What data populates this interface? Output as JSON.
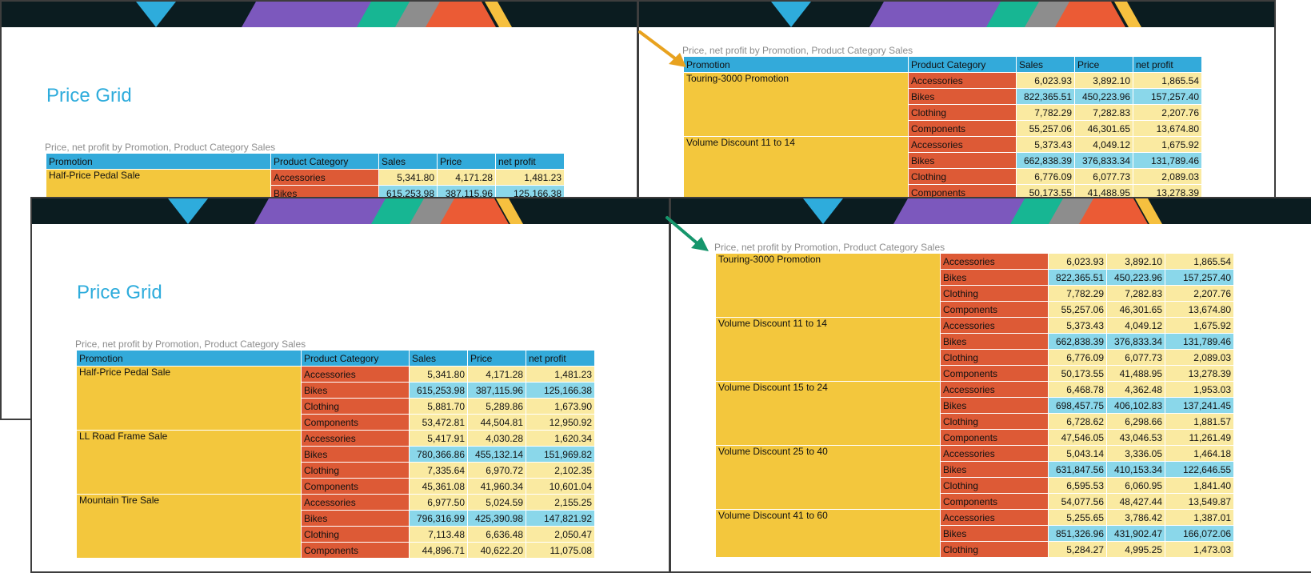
{
  "caption": "Price, net profit by Promotion, Product Category Sales",
  "report_title": "Price Grid",
  "headers": [
    "Promotion",
    "Product Category",
    "Sales",
    "Price",
    "net profit"
  ],
  "colors": {
    "banner": "#0b1c20",
    "header": "#33aada",
    "promotion": "#f3c73d",
    "category": "#dd5a36",
    "value": "#faeaa1",
    "value_highlight": "#8ad7ea",
    "title": "#2eacdc",
    "arrow_orange": "#e8a21f",
    "arrow_green": "#16966c"
  },
  "top_left_page": {
    "groups": [
      {
        "promotion": "Half-Price Pedal Sale",
        "rows": [
          {
            "category": "Accessories",
            "sales": "5,341.80",
            "price": "4,171.28",
            "profit": "1,481.23"
          },
          {
            "category": "Bikes",
            "sales": "615,253.98",
            "price": "387,115.96",
            "profit": "125,166.38"
          }
        ]
      }
    ]
  },
  "top_right_page": {
    "groups": [
      {
        "promotion": "Touring-3000 Promotion",
        "rows": [
          {
            "category": "Accessories",
            "sales": "6,023.93",
            "price": "3,892.10",
            "profit": "1,865.54"
          },
          {
            "category": "Bikes",
            "sales": "822,365.51",
            "price": "450,223.96",
            "profit": "157,257.40"
          },
          {
            "category": "Clothing",
            "sales": "7,782.29",
            "price": "7,282.83",
            "profit": "2,207.76"
          },
          {
            "category": "Components",
            "sales": "55,257.06",
            "price": "46,301.65",
            "profit": "13,674.80"
          }
        ]
      },
      {
        "promotion": "Volume Discount 11 to 14",
        "rows": [
          {
            "category": "Accessories",
            "sales": "5,373.43",
            "price": "4,049.12",
            "profit": "1,675.92"
          },
          {
            "category": "Bikes",
            "sales": "662,838.39",
            "price": "376,833.34",
            "profit": "131,789.46"
          },
          {
            "category": "Clothing",
            "sales": "6,776.09",
            "price": "6,077.73",
            "profit": "2,089.03"
          },
          {
            "category": "Components",
            "sales": "50,173.55",
            "price": "41,488.95",
            "profit": "13,278.39"
          }
        ]
      }
    ]
  },
  "bottom_left_page": {
    "groups": [
      {
        "promotion": "Half-Price Pedal Sale",
        "rows": [
          {
            "category": "Accessories",
            "sales": "5,341.80",
            "price": "4,171.28",
            "profit": "1,481.23"
          },
          {
            "category": "Bikes",
            "sales": "615,253.98",
            "price": "387,115.96",
            "profit": "125,166.38"
          },
          {
            "category": "Clothing",
            "sales": "5,881.70",
            "price": "5,289.86",
            "profit": "1,673.90"
          },
          {
            "category": "Components",
            "sales": "53,472.81",
            "price": "44,504.81",
            "profit": "12,950.92"
          }
        ]
      },
      {
        "promotion": "LL Road Frame Sale",
        "rows": [
          {
            "category": "Accessories",
            "sales": "5,417.91",
            "price": "4,030.28",
            "profit": "1,620.34"
          },
          {
            "category": "Bikes",
            "sales": "780,366.86",
            "price": "455,132.14",
            "profit": "151,969.82"
          },
          {
            "category": "Clothing",
            "sales": "7,335.64",
            "price": "6,970.72",
            "profit": "2,102.35"
          },
          {
            "category": "Components",
            "sales": "45,361.08",
            "price": "41,960.34",
            "profit": "10,601.04"
          }
        ]
      },
      {
        "promotion": "Mountain Tire Sale",
        "rows": [
          {
            "category": "Accessories",
            "sales": "6,977.50",
            "price": "5,024.59",
            "profit": "2,155.25"
          },
          {
            "category": "Bikes",
            "sales": "796,316.99",
            "price": "425,390.98",
            "profit": "147,821.92"
          },
          {
            "category": "Clothing",
            "sales": "7,113.48",
            "price": "6,636.48",
            "profit": "2,050.47"
          },
          {
            "category": "Components",
            "sales": "44,896.71",
            "price": "40,622.20",
            "profit": "11,075.08"
          }
        ]
      }
    ]
  },
  "bottom_right_page": {
    "groups": [
      {
        "promotion": "Touring-3000 Promotion",
        "rows": [
          {
            "category": "Accessories",
            "sales": "6,023.93",
            "price": "3,892.10",
            "profit": "1,865.54"
          },
          {
            "category": "Bikes",
            "sales": "822,365.51",
            "price": "450,223.96",
            "profit": "157,257.40"
          },
          {
            "category": "Clothing",
            "sales": "7,782.29",
            "price": "7,282.83",
            "profit": "2,207.76"
          },
          {
            "category": "Components",
            "sales": "55,257.06",
            "price": "46,301.65",
            "profit": "13,674.80"
          }
        ]
      },
      {
        "promotion": "Volume Discount 11 to 14",
        "rows": [
          {
            "category": "Accessories",
            "sales": "5,373.43",
            "price": "4,049.12",
            "profit": "1,675.92"
          },
          {
            "category": "Bikes",
            "sales": "662,838.39",
            "price": "376,833.34",
            "profit": "131,789.46"
          },
          {
            "category": "Clothing",
            "sales": "6,776.09",
            "price": "6,077.73",
            "profit": "2,089.03"
          },
          {
            "category": "Components",
            "sales": "50,173.55",
            "price": "41,488.95",
            "profit": "13,278.39"
          }
        ]
      },
      {
        "promotion": "Volume Discount 15 to 24",
        "rows": [
          {
            "category": "Accessories",
            "sales": "6,468.78",
            "price": "4,362.48",
            "profit": "1,953.03"
          },
          {
            "category": "Bikes",
            "sales": "698,457.75",
            "price": "406,102.83",
            "profit": "137,241.45"
          },
          {
            "category": "Clothing",
            "sales": "6,728.62",
            "price": "6,298.66",
            "profit": "1,881.57"
          },
          {
            "category": "Components",
            "sales": "47,546.05",
            "price": "43,046.53",
            "profit": "11,261.49"
          }
        ]
      },
      {
        "promotion": "Volume Discount 25 to 40",
        "rows": [
          {
            "category": "Accessories",
            "sales": "5,043.14",
            "price": "3,336.05",
            "profit": "1,464.18"
          },
          {
            "category": "Bikes",
            "sales": "631,847.56",
            "price": "410,153.34",
            "profit": "122,646.55"
          },
          {
            "category": "Clothing",
            "sales": "6,595.53",
            "price": "6,060.95",
            "profit": "1,841.40"
          },
          {
            "category": "Components",
            "sales": "54,077.56",
            "price": "48,427.44",
            "profit": "13,549.87"
          }
        ]
      },
      {
        "promotion": "Volume Discount 41 to 60",
        "rows": [
          {
            "category": "Accessories",
            "sales": "5,255.65",
            "price": "3,786.42",
            "profit": "1,387.01"
          },
          {
            "category": "Bikes",
            "sales": "851,326.96",
            "price": "431,902.47",
            "profit": "166,072.06"
          },
          {
            "category": "Clothing",
            "sales": "5,284.27",
            "price": "4,995.25",
            "profit": "1,473.03"
          }
        ]
      }
    ]
  }
}
